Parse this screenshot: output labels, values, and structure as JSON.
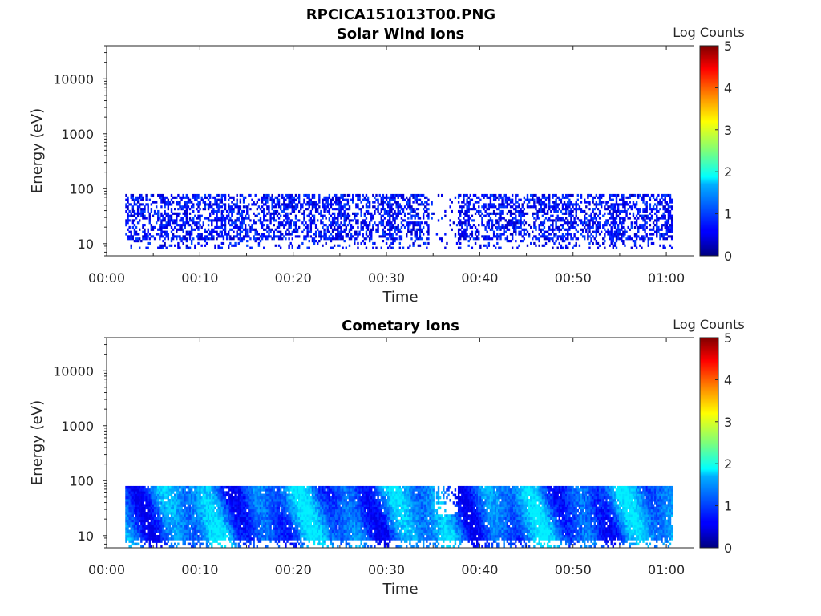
{
  "figure_title": "RPCICA151013T00.PNG",
  "chart_data": [
    {
      "type": "heatmap",
      "title": "Solar Wind Ions",
      "xlabel": "Time",
      "ylabel": "Energy (eV)",
      "xticks": [
        "00:00",
        "00:10",
        "00:20",
        "00:30",
        "00:40",
        "00:50",
        "01:00"
      ],
      "xlim_minutes": [
        0,
        63
      ],
      "yscale": "log",
      "ylim": [
        6,
        40000
      ],
      "yticks": [
        "10",
        "100",
        "1000",
        "10000"
      ],
      "yvalues": [
        10,
        100,
        1000,
        10000
      ],
      "colorbar": {
        "label": "Log Counts",
        "range": [
          0,
          5
        ],
        "ticks": [
          "0",
          "1",
          "2",
          "3",
          "4",
          "5"
        ],
        "colormap": "jet"
      },
      "data_extent": {
        "time_start_minutes": 2.0,
        "time_end_minutes": 60.5,
        "energy_min_eV": 8,
        "energy_max_eV": 80
      },
      "typical_log_counts": [
        0.3,
        1.0
      ],
      "data_gap_minutes": [
        [
          34.5,
          37.5
        ]
      ]
    },
    {
      "type": "heatmap",
      "title": "Cometary Ions",
      "xlabel": "Time",
      "ylabel": "Energy (eV)",
      "xticks": [
        "00:00",
        "00:10",
        "00:20",
        "00:30",
        "00:40",
        "00:50",
        "01:00"
      ],
      "xlim_minutes": [
        0,
        63
      ],
      "yscale": "log",
      "ylim": [
        6,
        40000
      ],
      "yticks": [
        "10",
        "100",
        "1000",
        "10000"
      ],
      "yvalues": [
        10,
        100,
        1000,
        10000
      ],
      "colorbar": {
        "label": "Log Counts",
        "range": [
          0,
          5
        ],
        "ticks": [
          "0",
          "1",
          "2",
          "3",
          "4",
          "5"
        ],
        "colormap": "jet"
      },
      "data_extent": {
        "time_start_minutes": 2.0,
        "time_end_minutes": 60.5,
        "energy_min_eV": 6,
        "energy_max_eV": 80
      },
      "typical_log_counts": [
        0.5,
        1.8
      ]
    }
  ]
}
